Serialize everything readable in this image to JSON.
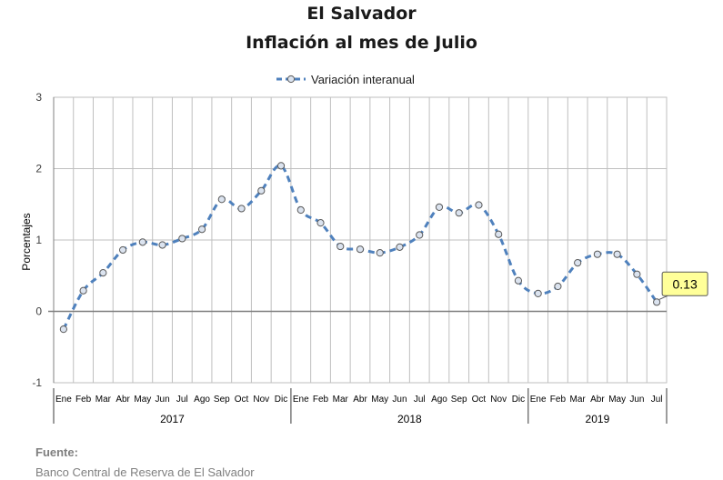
{
  "chart_data": {
    "type": "line",
    "title": "El Salvador",
    "subtitle": "Inflación al mes de Julio",
    "ylabel": "Porcentajes",
    "ylim": [
      -1,
      3
    ],
    "yticks": [
      -1,
      0,
      1,
      2,
      3
    ],
    "grid": true,
    "legend_position": "top-center",
    "categories": [
      "Ene",
      "Feb",
      "Mar",
      "Abr",
      "May",
      "Jun",
      "Jul",
      "Ago",
      "Sep",
      "Oct",
      "Nov",
      "Dic",
      "Ene",
      "Feb",
      "Mar",
      "Abr",
      "May",
      "Jun",
      "Jul",
      "Ago",
      "Sep",
      "Oct",
      "Nov",
      "Dic",
      "Ene",
      "Feb",
      "Mar",
      "Abr",
      "May",
      "Jun",
      "Jul"
    ],
    "years": [
      {
        "label": "2017",
        "count": 12
      },
      {
        "label": "2018",
        "count": 12
      },
      {
        "label": "2019",
        "count": 7
      }
    ],
    "series": [
      {
        "name": "Variación interanual",
        "color": "#4f81bd",
        "values": [
          -0.25,
          0.29,
          0.54,
          0.86,
          0.97,
          0.93,
          1.02,
          1.15,
          1.57,
          1.44,
          1.69,
          2.04,
          1.42,
          1.24,
          0.91,
          0.87,
          0.82,
          0.9,
          1.07,
          1.46,
          1.38,
          1.49,
          1.08,
          0.43,
          0.25,
          0.35,
          0.68,
          0.8,
          0.8,
          0.52,
          0.13
        ]
      }
    ],
    "annotation": {
      "text": "0.13",
      "index": 30
    }
  },
  "source": {
    "label": "Fuente:",
    "text": "Banco Central de Reserva de El Salvador"
  }
}
